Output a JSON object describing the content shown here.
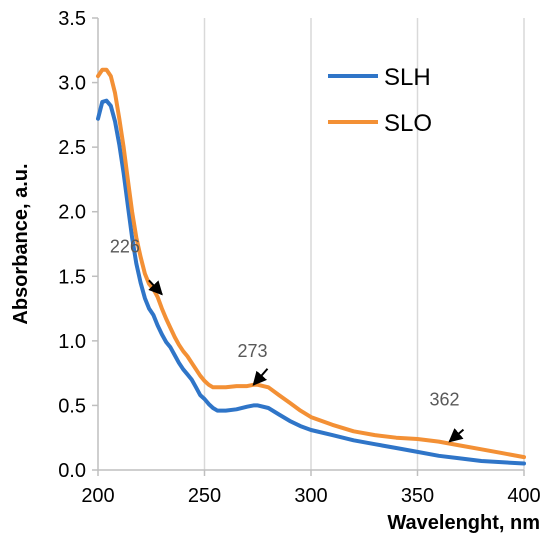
{
  "chart_data": {
    "type": "line",
    "xlabel": "Wavelenght, nm",
    "ylabel": "Absorbance, a.u.",
    "xlim": [
      200,
      400
    ],
    "ylim": [
      0,
      3.5
    ],
    "xticks": [
      200,
      250,
      300,
      350,
      400
    ],
    "yticks": [
      0.0,
      0.5,
      1.0,
      1.5,
      2.0,
      2.5,
      3.0,
      3.5
    ],
    "xtick_labels": [
      "200",
      "250",
      "300",
      "350",
      "400"
    ],
    "ytick_labels": [
      "0.0",
      "0.5",
      "1.0",
      "1.5",
      "2.0",
      "2.5",
      "3.0",
      "3.5"
    ],
    "grid": "vertical",
    "legend_position": "top-right",
    "series": [
      {
        "name": "SLH",
        "color": "#2F75C8",
        "x": [
          200,
          202,
          204,
          206,
          208,
          210,
          212,
          214,
          216,
          218,
          220,
          222,
          224,
          226,
          228,
          230,
          232,
          234,
          236,
          238,
          240,
          242,
          244,
          246,
          248,
          250,
          252,
          254,
          256,
          258,
          260,
          265,
          270,
          273,
          275,
          280,
          285,
          290,
          295,
          300,
          310,
          320,
          330,
          340,
          350,
          360,
          370,
          380,
          390,
          400
        ],
        "y": [
          2.72,
          2.85,
          2.86,
          2.82,
          2.7,
          2.52,
          2.3,
          2.05,
          1.8,
          1.6,
          1.45,
          1.33,
          1.25,
          1.2,
          1.12,
          1.05,
          0.99,
          0.95,
          0.89,
          0.83,
          0.78,
          0.74,
          0.7,
          0.64,
          0.58,
          0.55,
          0.51,
          0.48,
          0.46,
          0.46,
          0.46,
          0.47,
          0.49,
          0.5,
          0.5,
          0.48,
          0.43,
          0.38,
          0.34,
          0.31,
          0.27,
          0.23,
          0.2,
          0.17,
          0.14,
          0.11,
          0.09,
          0.07,
          0.06,
          0.05
        ]
      },
      {
        "name": "SLO",
        "color": "#F39035",
        "x": [
          200,
          202,
          204,
          206,
          208,
          210,
          212,
          214,
          216,
          218,
          220,
          222,
          224,
          226,
          228,
          230,
          232,
          234,
          236,
          238,
          240,
          242,
          244,
          246,
          248,
          250,
          252,
          254,
          256,
          258,
          260,
          265,
          270,
          273,
          275,
          280,
          285,
          290,
          295,
          300,
          310,
          320,
          330,
          340,
          350,
          360,
          370,
          380,
          390,
          400
        ],
        "y": [
          3.05,
          3.1,
          3.1,
          3.05,
          2.92,
          2.72,
          2.5,
          2.25,
          2.0,
          1.8,
          1.65,
          1.52,
          1.44,
          1.4,
          1.34,
          1.25,
          1.17,
          1.1,
          1.03,
          0.97,
          0.92,
          0.88,
          0.83,
          0.78,
          0.73,
          0.69,
          0.66,
          0.64,
          0.64,
          0.64,
          0.64,
          0.65,
          0.65,
          0.66,
          0.66,
          0.64,
          0.58,
          0.52,
          0.46,
          0.41,
          0.35,
          0.3,
          0.27,
          0.25,
          0.24,
          0.22,
          0.19,
          0.16,
          0.13,
          0.1
        ]
      }
    ],
    "annotations": [
      {
        "label": "226",
        "x": 230,
        "y": 1.36
      },
      {
        "label": "273",
        "x": 273,
        "y": 0.66
      },
      {
        "label": "362",
        "x": 365,
        "y": 0.22
      }
    ]
  }
}
